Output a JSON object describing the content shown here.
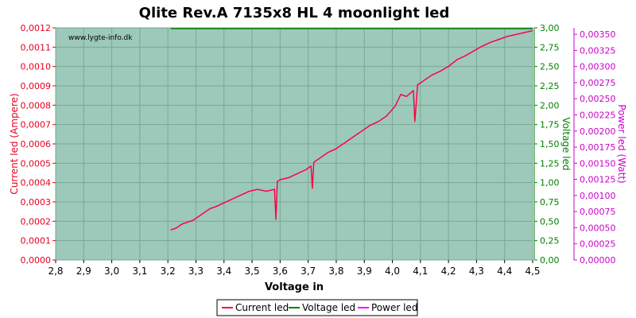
{
  "chart_data": {
    "type": "line",
    "title": "Qlite Rev.A 7135x8 HL 4 moonlight led",
    "watermark": "www.lygte-info.dk",
    "xlabel": "Voltage in",
    "ylabel_left": "Current led (Ampere)",
    "ylabel_right1": "Voltage led",
    "ylabel_right2": "Power led (Watt)",
    "xlim": [
      2.8,
      4.5
    ],
    "ylim_left": [
      0,
      0.0012
    ],
    "ylim_right1": [
      0,
      3.0
    ],
    "ylim_right2": [
      0,
      0.0036
    ],
    "x_ticks": [
      "2,8",
      "2,9",
      "3,0",
      "3,1",
      "3,2",
      "3,3",
      "3,4",
      "3,5",
      "3,6",
      "3,7",
      "3,8",
      "3,9",
      "4,0",
      "4,1",
      "4,2",
      "4,3",
      "4,4",
      "4,5"
    ],
    "y_left_ticks": [
      "0,0000",
      "0,0001",
      "0,0002",
      "0,0003",
      "0,0004",
      "0,0005",
      "0,0006",
      "0,0007",
      "0,0008",
      "0,0009",
      "0,0010",
      "0,0011",
      "0,0012"
    ],
    "y_right1_ticks": [
      "0,00",
      "0,25",
      "0,50",
      "0,75",
      "1,00",
      "1,25",
      "1,50",
      "1,75",
      "2,00",
      "2,25",
      "2,50",
      "2,75",
      "3,00"
    ],
    "y_right2_ticks": [
      "0,00000",
      "0,00025",
      "0,00050",
      "0,00075",
      "0,00100",
      "0,00125",
      "0,00150",
      "0,00175",
      "0,00200",
      "0,00225",
      "0,00250",
      "0,00275",
      "0,00300",
      "0,00325",
      "0,00350"
    ],
    "grid": true,
    "legend_position": "bottom-center",
    "series": [
      {
        "name": "Current led",
        "axis": "left",
        "color": "#ff0033",
        "x": [
          3.21,
          3.23,
          3.25,
          3.27,
          3.29,
          3.31,
          3.33,
          3.35,
          3.37,
          3.4,
          3.43,
          3.46,
          3.49,
          3.52,
          3.55,
          3.58,
          3.585,
          3.59,
          3.6,
          3.63,
          3.66,
          3.69,
          3.71,
          3.715,
          3.72,
          3.74,
          3.77,
          3.8,
          3.83,
          3.86,
          3.89,
          3.92,
          3.95,
          3.98,
          4.01,
          4.03,
          4.05,
          4.075,
          4.08,
          4.09,
          4.11,
          4.14,
          4.17,
          4.2,
          4.23,
          4.26,
          4.29,
          4.32,
          4.35,
          4.38,
          4.41,
          4.44,
          4.47,
          4.5
        ],
        "values": [
          0.000155,
          0.000165,
          0.000185,
          0.000195,
          0.000205,
          0.000225,
          0.000245,
          0.000265,
          0.000275,
          0.000295,
          0.000315,
          0.000335,
          0.000355,
          0.000365,
          0.000355,
          0.000365,
          0.00021,
          0.000405,
          0.000415,
          0.000425,
          0.000445,
          0.000465,
          0.000485,
          0.00037,
          0.000505,
          0.000525,
          0.000555,
          0.000575,
          0.000605,
          0.000635,
          0.000665,
          0.000695,
          0.000715,
          0.000745,
          0.000795,
          0.000855,
          0.000845,
          0.000875,
          0.000715,
          0.000905,
          0.000925,
          0.000955,
          0.000975,
          0.001,
          0.001035,
          0.001055,
          0.00108,
          0.001105,
          0.001125,
          0.00114,
          0.001155,
          0.001165,
          0.001175,
          0.001185
        ]
      },
      {
        "name": "Voltage led",
        "axis": "right1",
        "color": "#008000",
        "x": [
          3.21,
          4.5
        ],
        "values": [
          2.99,
          2.99
        ]
      },
      {
        "name": "Power led",
        "axis": "right2",
        "color": "#ff00ff",
        "x": [
          3.21,
          3.23,
          3.25,
          3.27,
          3.29,
          3.31,
          3.33,
          3.35,
          3.37,
          3.4,
          3.43,
          3.46,
          3.49,
          3.52,
          3.55,
          3.58,
          3.585,
          3.59,
          3.6,
          3.63,
          3.66,
          3.69,
          3.71,
          3.715,
          3.72,
          3.74,
          3.77,
          3.8,
          3.83,
          3.86,
          3.89,
          3.92,
          3.95,
          3.98,
          4.01,
          4.03,
          4.05,
          4.075,
          4.08,
          4.09,
          4.11,
          4.14,
          4.17,
          4.2,
          4.23,
          4.26,
          4.29,
          4.32,
          4.35,
          4.38,
          4.41,
          4.44,
          4.47,
          4.5
        ],
        "values": [
          0.000467,
          0.000497,
          0.000557,
          0.000587,
          0.000617,
          0.000677,
          0.000737,
          0.000797,
          0.000827,
          0.000887,
          0.000947,
          0.001007,
          0.001067,
          0.001097,
          0.001067,
          0.001097,
          0.000631,
          0.001217,
          0.001247,
          0.001277,
          0.001337,
          0.001397,
          0.001457,
          0.001111,
          0.001517,
          0.001577,
          0.001667,
          0.001727,
          0.001817,
          0.001907,
          0.001997,
          0.002087,
          0.002147,
          0.002237,
          0.002387,
          0.002567,
          0.002537,
          0.002627,
          0.002147,
          0.002717,
          0.002777,
          0.002867,
          0.002927,
          0.003003,
          0.003107,
          0.003167,
          0.003242,
          0.003317,
          0.003377,
          0.003422,
          0.003467,
          0.003497,
          0.003527,
          0.003557
        ]
      }
    ]
  }
}
